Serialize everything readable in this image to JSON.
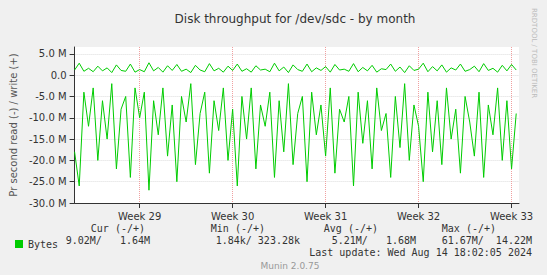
{
  "chart_data": {
    "type": "line",
    "title": "Disk throughput for /dev/sdc - by month",
    "ylabel": "Pr second read (-) / write (+)",
    "x": [
      28.3,
      28.35,
      28.4,
      28.45,
      28.5,
      28.55,
      28.6,
      28.65,
      28.7,
      28.75,
      28.8,
      28.85,
      28.9,
      28.95,
      29.0,
      29.05,
      29.1,
      29.15,
      29.2,
      29.25,
      29.3,
      29.35,
      29.4,
      29.45,
      29.5,
      29.55,
      29.6,
      29.65,
      29.7,
      29.75,
      29.8,
      29.85,
      29.9,
      29.95,
      30.0,
      30.05,
      30.1,
      30.15,
      30.2,
      30.25,
      30.3,
      30.35,
      30.4,
      30.45,
      30.5,
      30.55,
      30.6,
      30.65,
      30.7,
      30.75,
      30.8,
      30.85,
      30.9,
      30.95,
      31.0,
      31.05,
      31.1,
      31.15,
      31.2,
      31.25,
      31.3,
      31.35,
      31.4,
      31.45,
      31.5,
      31.55,
      31.6,
      31.65,
      31.7,
      31.75,
      31.8,
      31.85,
      31.9,
      31.95,
      32.0,
      32.05,
      32.1,
      32.15,
      32.2,
      32.25,
      32.3,
      32.35,
      32.4,
      32.45,
      32.5,
      32.55,
      32.6,
      32.65,
      32.7,
      32.75,
      32.8,
      32.85,
      32.9,
      32.95,
      33.0,
      33.05
    ],
    "series": [
      {
        "name": "Bytes",
        "color": "#00cc00",
        "values": [
          1.2,
          2.8,
          0.9,
          1.6,
          0.8,
          2.1,
          1.0,
          1.7,
          0.6,
          2.4,
          1.1,
          0.9,
          2.6,
          0.7,
          1.3,
          0.8,
          2.9,
          1.0,
          1.8,
          0.7,
          2.2,
          1.1,
          2.5,
          0.9,
          1.4,
          0.6,
          2.3,
          1.2,
          0.8,
          2.7,
          1.0,
          1.6,
          0.7,
          2.1,
          1.1,
          2.6,
          0.9,
          1.5,
          0.7,
          2.2,
          1.2,
          1.4,
          0.8,
          2.8,
          1.0,
          1.9,
          0.6,
          2.4,
          1.3,
          0.9,
          2.6,
          0.8,
          1.7,
          1.1,
          2.0,
          0.7,
          2.5,
          1.2,
          1.4,
          0.9,
          2.7,
          0.8,
          1.8,
          1.0,
          2.3,
          0.7,
          1.5,
          1.3,
          2.6,
          0.9,
          1.9,
          0.6,
          2.2,
          1.1,
          1.4,
          2.8,
          0.8,
          2.0,
          1.0,
          2.4,
          0.7,
          1.7,
          1.2,
          2.6,
          0.9,
          1.3,
          2.1,
          0.8,
          2.7,
          1.1,
          1.6,
          0.7,
          2.3,
          1.0,
          2.5,
          1.2
        ],
        "read_values": [
          -18,
          -26,
          -4,
          -12,
          -3,
          -20,
          -6,
          -15,
          -2,
          -22,
          -8,
          -5,
          -24,
          -3,
          -10,
          -4,
          -27,
          -6,
          -14,
          -3,
          -19,
          -7,
          -25,
          -5,
          -11,
          -2,
          -21,
          -9,
          -4,
          -23,
          -6,
          -13,
          -3,
          -20,
          -8,
          -26,
          -5,
          -15,
          -3,
          -22,
          -7,
          -12,
          -4,
          -24,
          -6,
          -18,
          -2,
          -21,
          -9,
          -5,
          -25,
          -4,
          -14,
          -7,
          -19,
          -3,
          -23,
          -8,
          -11,
          -5,
          -26,
          -4,
          -16,
          -6,
          -22,
          -3,
          -13,
          -9,
          -24,
          -5,
          -17,
          -2,
          -20,
          -7,
          -12,
          -25,
          -4,
          -18,
          -6,
          -21,
          -3,
          -15,
          -8,
          -23,
          -5,
          -11,
          -19,
          -4,
          -24,
          -7,
          -14,
          -3,
          -20,
          -6,
          -22,
          -9
        ]
      }
    ],
    "xlim": [
      28.3,
      33.08
    ],
    "xticks": [
      {
        "value": 29,
        "label": "Week 29"
      },
      {
        "value": 30,
        "label": "Week 30"
      },
      {
        "value": 31,
        "label": "Week 31"
      },
      {
        "value": 32,
        "label": "Week 32"
      },
      {
        "value": 33,
        "label": "Week 33"
      }
    ],
    "ylim": [
      -30,
      6.6
    ],
    "yticks": [
      {
        "value": -30,
        "label": "-30.0 M"
      },
      {
        "value": -25,
        "label": "-25.0 M"
      },
      {
        "value": -20,
        "label": "-20.0 M"
      },
      {
        "value": -15,
        "label": "-15.0 M"
      },
      {
        "value": -10,
        "label": "-10.0 M"
      },
      {
        "value": -5,
        "label": "-5.0 M"
      },
      {
        "value": 0,
        "label": "0.0"
      },
      {
        "value": 5,
        "label": "5.0 M"
      }
    ],
    "grid": true,
    "legend": "bottom-left",
    "annotations": {
      "stats_headers": [
        "Cur (-/+)",
        "Min (-/+)",
        "Avg (-/+)",
        "Max (-/+)"
      ],
      "stats_values": [
        "9.02M/   1.64M",
        "1.84k/ 323.28k",
        "5.21M/   1.68M",
        "61.67M/  14.22M"
      ],
      "last_update": "Last update: Wed Aug 14 18:02:05 2024",
      "footer": "Munin 2.0.75",
      "side_text": "RRDTOOL / TOBI OETIKER"
    }
  }
}
